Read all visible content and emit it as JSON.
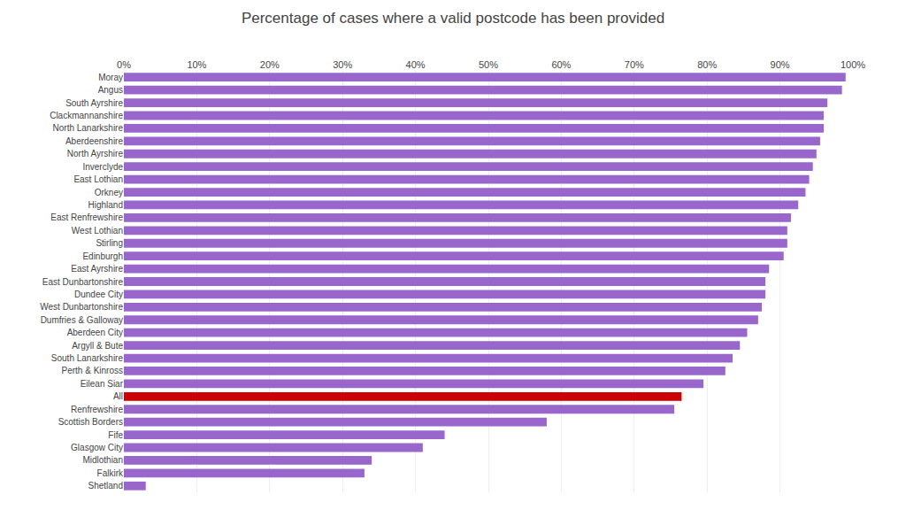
{
  "chart_data": {
    "type": "bar",
    "orientation": "horizontal",
    "title": "Percentage of cases where a valid postcode has been provided",
    "categories": [
      "Moray",
      "Angus",
      "South Ayrshire",
      "Clackmannanshire",
      "North Lanarkshire",
      "Aberdeenshire",
      "North Ayrshire",
      "Inverclyde",
      "East Lothian",
      "Orkney",
      "Highland",
      "East Renfrewshire",
      "West Lothian",
      "Stirling",
      "Edinburgh",
      "East Ayrshire",
      "East Dunbartonshire",
      "Dundee City",
      "West Dunbartonshire",
      "Dumfries & Galloway",
      "Aberdeen City",
      "Argyll & Bute",
      "South Lanarkshire",
      "Perth & Kinross",
      "Eilean Siar",
      "All",
      "Renfrewshire",
      "Scottish Borders",
      "Fife",
      "Glasgow City",
      "Midlothian",
      "Falkirk",
      "Shetland"
    ],
    "values": [
      99.0,
      98.5,
      96.5,
      96.0,
      96.0,
      95.5,
      95.0,
      94.5,
      94.0,
      93.5,
      92.5,
      91.5,
      91.0,
      91.0,
      90.5,
      88.5,
      88.0,
      88.0,
      87.5,
      87.0,
      85.5,
      84.5,
      83.5,
      82.5,
      79.5,
      76.5,
      75.5,
      58.0,
      44.0,
      41.0,
      34.0,
      33.0,
      3.0
    ],
    "colors": [
      "#9966cc",
      "#9966cc",
      "#9966cc",
      "#9966cc",
      "#9966cc",
      "#9966cc",
      "#9966cc",
      "#9966cc",
      "#9966cc",
      "#9966cc",
      "#9966cc",
      "#9966cc",
      "#9966cc",
      "#9966cc",
      "#9966cc",
      "#9966cc",
      "#9966cc",
      "#9966cc",
      "#9966cc",
      "#9966cc",
      "#9966cc",
      "#9966cc",
      "#9966cc",
      "#9966cc",
      "#9966cc",
      "#cc0000",
      "#9966cc",
      "#9966cc",
      "#9966cc",
      "#9966cc",
      "#9966cc",
      "#9966cc",
      "#9966cc"
    ],
    "xlim": [
      0,
      100
    ],
    "xticks": [
      {
        "value": 0,
        "label": "0%"
      },
      {
        "value": 10,
        "label": "10%"
      },
      {
        "value": 20,
        "label": "20%"
      },
      {
        "value": 30,
        "label": "30%"
      },
      {
        "value": 40,
        "label": "40%"
      },
      {
        "value": 50,
        "label": "50%"
      },
      {
        "value": 60,
        "label": "60%"
      },
      {
        "value": 70,
        "label": "70%"
      },
      {
        "value": 80,
        "label": "80%"
      },
      {
        "value": 90,
        "label": "90%"
      },
      {
        "value": 100,
        "label": "100%"
      }
    ],
    "grid": true
  }
}
